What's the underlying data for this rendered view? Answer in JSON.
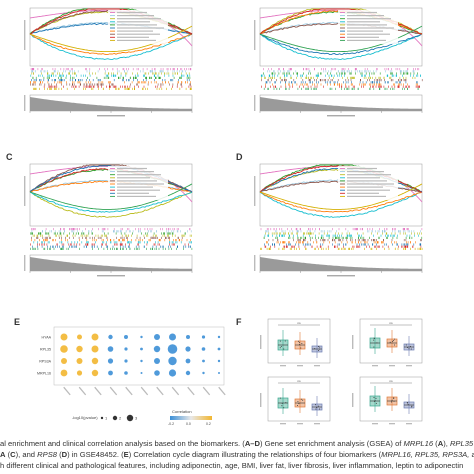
{
  "panels": {
    "A": {
      "label": ""
    },
    "B": {
      "label": ""
    },
    "C": {
      "label": "C"
    },
    "D": {
      "label": "D"
    },
    "E": {
      "label": "E"
    },
    "F": {
      "label": "F"
    }
  },
  "gsea_colors": {
    "A": [
      "#e377c2",
      "#9ecae1",
      "#bcbd22",
      "#17becf",
      "#2ca02c",
      "#1f77b4",
      "#ff7f0e",
      "#8c564b",
      "#d62728",
      "#d4b106"
    ],
    "B": [
      "#e377c2",
      "#9ecae1",
      "#2ca02c",
      "#17becf",
      "#bcbd22",
      "#8c564b",
      "#1f77b4",
      "#ff7f0e",
      "#d62728",
      "#31a354"
    ],
    "C": [
      "#e377c2",
      "#9ecae1",
      "#2ca02c",
      "#bcbd22",
      "#8c564b",
      "#ff7f0e",
      "#17becf",
      "#d62728",
      "#1f77b4",
      "#31a354"
    ],
    "D": [
      "#e377c2",
      "#9ecae1",
      "#bcbd22",
      "#17becf",
      "#2ca02c",
      "#8c564b",
      "#ff7f0e",
      "#1f77b4",
      "#d62728",
      "#d4b106"
    ]
  },
  "bubble": {
    "rows": [
      "HYAA",
      "RPL35",
      "RPS3A",
      "MRPL16"
    ],
    "legend_label": "-log10(pvalue)",
    "legend_sizes": [
      "1",
      "2",
      "3"
    ],
    "color_title": "Correlation",
    "color_ticks": [
      "-0.2",
      "0.0",
      "0.2"
    ],
    "high_color": "#f2b630",
    "low_color": "#3c8fd6"
  },
  "boxplots": {
    "colors": [
      "#3aa88f",
      "#e07b39",
      "#6f7fb3"
    ],
    "sig_labels": [
      "ns",
      "ns",
      "ns",
      "ns"
    ]
  },
  "caption": {
    "line1_pre": "al enrichment and clinical correlation analysis based on the biomarkers. (",
    "line1_b1": "A–D",
    "line1_mid": ") Gene set enrichment analysis (GSEA) of ",
    "line1_i1": "MRPL16",
    "line1_mid2": " (",
    "line1_b2": "A",
    "line1_mid3": "), ",
    "line1_i2": "RPL35",
    "line2_pre": "",
    "line2_b1": "A",
    "line2_mid": " (",
    "line2_b2": "C",
    "line2_mid2": "), and ",
    "line2_i1": "RPS8",
    "line2_mid3": " (",
    "line2_b3": "D",
    "line2_mid4": ") in GSE48452. (",
    "line2_b4": "E",
    "line2_mid5": ") Correlation cycle diagram illustrating the relationships of four biomarkers (",
    "line2_i2": "MRPL16, RPL35, RPS3A,",
    "line2_end": " and",
    "line3": "h different clinical and pathological features, including adiponectin, age, BMI, liver fat, liver fibrosis, liver inflammation, leptin to adiponectin"
  }
}
